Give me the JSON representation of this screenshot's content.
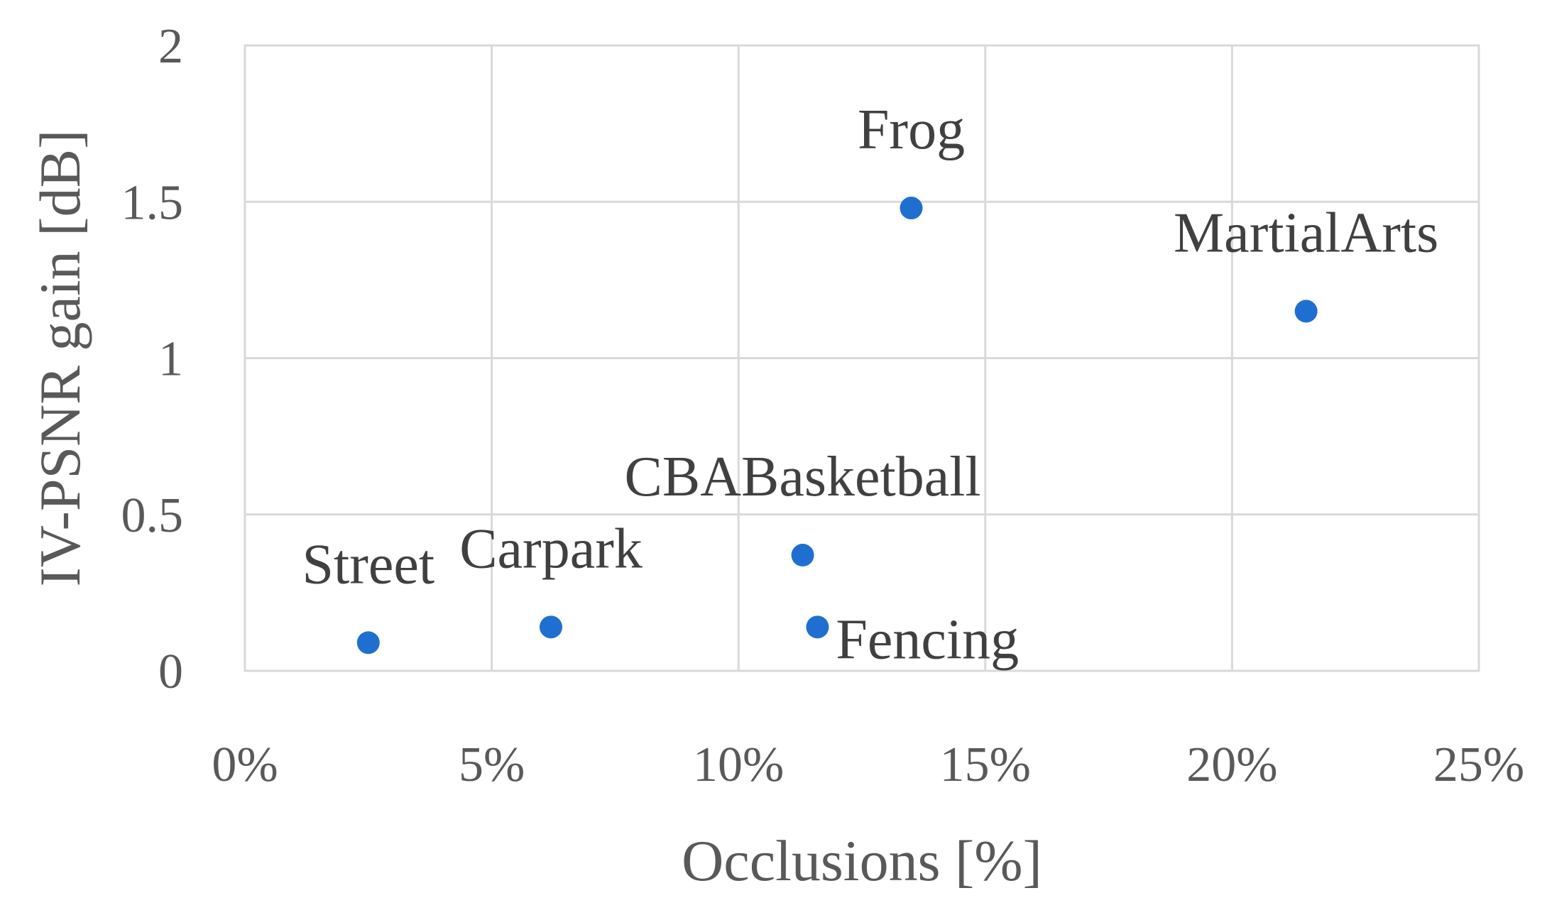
{
  "chart_data": {
    "type": "scatter",
    "title": "",
    "xlabel": "Occlusions [%]",
    "ylabel": "IV-PSNR gain [dB]",
    "xlim": [
      0,
      25
    ],
    "ylim": [
      0,
      2
    ],
    "x_ticks": [
      "0%",
      "5%",
      "10%",
      "15%",
      "20%",
      "25%"
    ],
    "y_ticks": [
      "0",
      "0.5",
      "1",
      "1.5",
      "2"
    ],
    "grid": true,
    "legend": "none",
    "marker_color": "#1f6fd0",
    "points": [
      {
        "label": "Street",
        "x": 2.5,
        "y": 0.09,
        "label_position": "above"
      },
      {
        "label": "Carpark",
        "x": 6.2,
        "y": 0.14,
        "label_position": "above"
      },
      {
        "label": "CBABasketball",
        "x": 11.3,
        "y": 0.37,
        "label_position": "above"
      },
      {
        "label": "Fencing",
        "x": 11.6,
        "y": 0.14,
        "label_position": "right"
      },
      {
        "label": "Frog",
        "x": 13.5,
        "y": 1.48,
        "label_position": "above"
      },
      {
        "label": "MartialArts",
        "x": 21.5,
        "y": 1.15,
        "label_position": "above"
      }
    ]
  }
}
